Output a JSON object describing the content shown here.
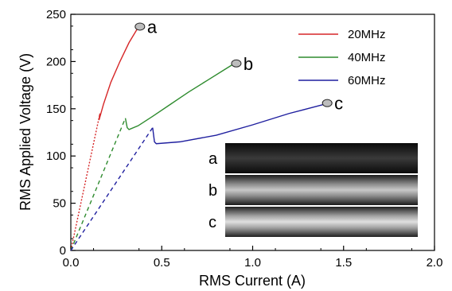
{
  "chart_data": {
    "type": "line",
    "xlabel": "RMS Current (A)",
    "ylabel": "RMS Applied Voltage (V)",
    "xlim": [
      0.0,
      2.0
    ],
    "ylim": [
      0,
      250
    ],
    "xticks": [
      "0.0",
      "0.5",
      "1.0",
      "1.5",
      "2.0"
    ],
    "yticks": [
      "0",
      "50",
      "100",
      "150",
      "200",
      "250"
    ],
    "grid": false,
    "legend_position": "top-right",
    "series": [
      {
        "name": "20MHz",
        "color": "#d62728",
        "dotted": {
          "x": [
            0.0,
            0.16
          ],
          "y": [
            0,
            145
          ]
        },
        "values": {
          "x": [
            0.16,
            0.155,
            0.18,
            0.22,
            0.27,
            0.32,
            0.37
          ],
          "y": [
            145,
            138,
            155,
            178,
            200,
            220,
            236
          ]
        },
        "marker": {
          "x": 0.38,
          "y": 237,
          "label": "a"
        }
      },
      {
        "name": "40MHz",
        "color": "#2e8b2e",
        "dotted": {
          "x": [
            0.0,
            0.3
          ],
          "y": [
            0,
            140
          ]
        },
        "values": {
          "x": [
            0.3,
            0.31,
            0.32,
            0.37,
            0.45,
            0.55,
            0.65,
            0.75,
            0.85,
            0.9
          ],
          "y": [
            140,
            130,
            128,
            132,
            142,
            155,
            168,
            180,
            192,
            198
          ]
        },
        "marker": {
          "x": 0.91,
          "y": 198,
          "label": "b"
        }
      },
      {
        "name": "60MHz",
        "color": "#1f1f9f",
        "dotted": {
          "x": [
            0.0,
            0.45
          ],
          "y": [
            0,
            130
          ]
        },
        "values": {
          "x": [
            0.45,
            0.46,
            0.47,
            0.6,
            0.8,
            1.0,
            1.2,
            1.3,
            1.4
          ],
          "y": [
            130,
            115,
            113,
            115,
            122,
            133,
            145,
            150,
            155
          ]
        },
        "marker": {
          "x": 1.41,
          "y": 156,
          "label": "c"
        }
      }
    ],
    "inset": {
      "panels": [
        {
          "label": "a",
          "brightness": "dim"
        },
        {
          "label": "b",
          "brightness": "medium"
        },
        {
          "label": "c",
          "brightness": "bright"
        }
      ]
    }
  }
}
